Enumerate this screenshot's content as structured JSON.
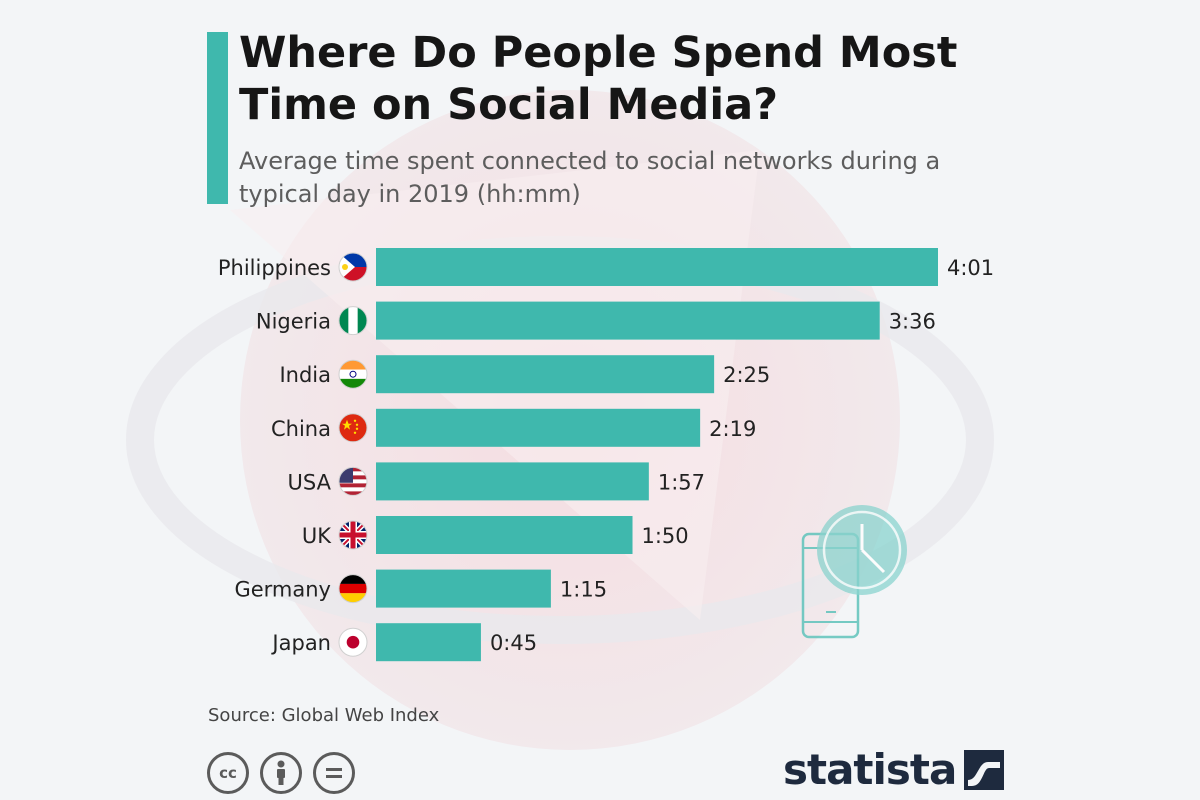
{
  "header": {
    "title": "Where Do People Spend Most Time on Social Media?",
    "subtitle": "Average time spent connected to social networks during a typical day in 2019 (hh:mm)"
  },
  "footer": {
    "source": "Source: Global Web Index",
    "brand": "statista"
  },
  "license_icons": [
    "cc-icon",
    "attribution-icon",
    "no-derivatives-icon"
  ],
  "colors": {
    "accent": "#3fb8ad",
    "bar": "#3fb8ad",
    "brand": "#1e2a3e"
  },
  "chart_data": {
    "type": "bar",
    "orientation": "horizontal",
    "categories": [
      "Philippines",
      "Nigeria",
      "India",
      "China",
      "USA",
      "UK",
      "Germany",
      "Japan"
    ],
    "values": [
      241,
      216,
      145,
      139,
      117,
      110,
      75,
      45
    ],
    "value_labels": [
      "4:01",
      "3:36",
      "2:25",
      "2:19",
      "1:57",
      "1:50",
      "1:15",
      "0:45"
    ],
    "unit": "hh:mm",
    "flags": [
      "philippines-flag",
      "nigeria-flag",
      "india-flag",
      "china-flag",
      "usa-flag",
      "uk-flag",
      "germany-flag",
      "japan-flag"
    ],
    "grid": false,
    "legend": "none"
  }
}
